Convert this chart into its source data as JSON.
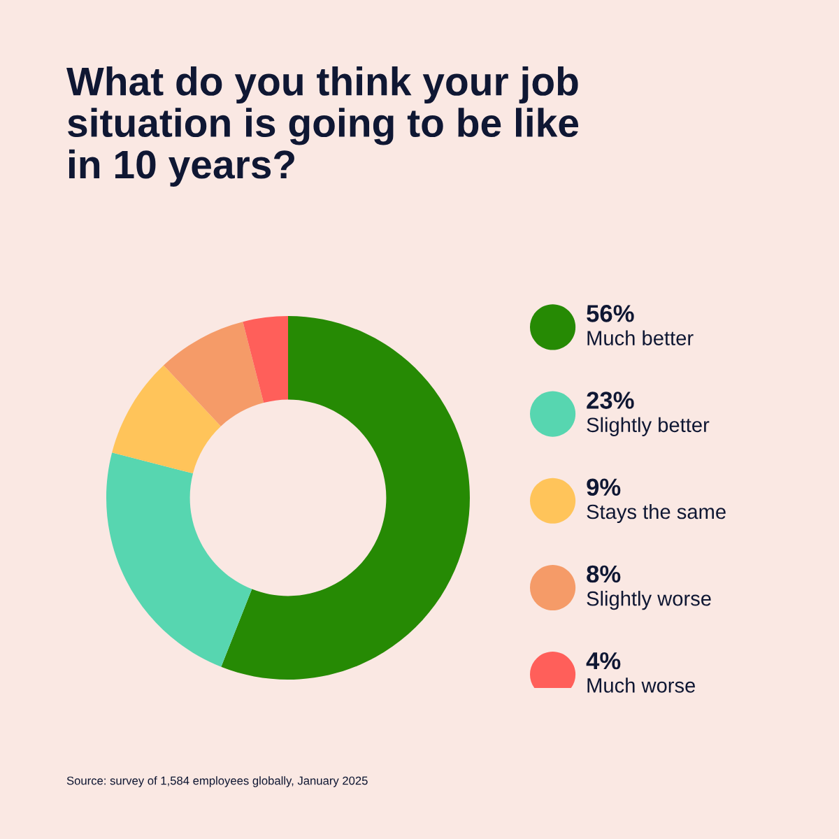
{
  "chart_data": {
    "type": "donut",
    "title": "What do you think your job\nsituation is going to be like\nin 10 years?",
    "categories": [
      "Much better",
      "Slightly better",
      "Stays the same",
      "Slightly worse",
      "Much worse"
    ],
    "values": [
      56,
      23,
      9,
      8,
      4
    ],
    "value_labels": [
      "56%",
      "23%",
      "9%",
      "8%",
      "4%"
    ],
    "colors": [
      "#268a04",
      "#57d6b0",
      "#ffc45a",
      "#f59b68",
      "#ff5f5a"
    ],
    "legend": "right",
    "annotations": [
      "Source: survey of 1,584 employees globally, January 2025"
    ]
  }
}
